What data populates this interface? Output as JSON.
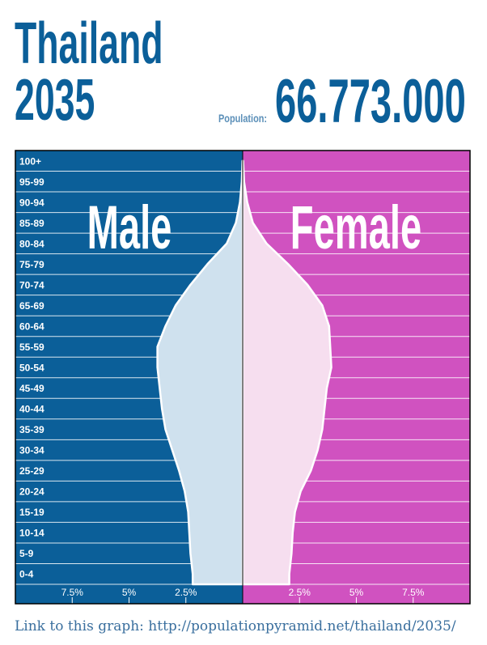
{
  "country": "Thailand",
  "year": "2035",
  "population_label": "Population:",
  "population_value": "66.773.000",
  "footer_link": "Link to this graph: http://populationpyramid.net/thailand/2035/",
  "colors": {
    "title": "#0b5f99",
    "male_bg": "#0b5f99",
    "female_bg": "#d052c0",
    "male_fill": "#cfe1ee",
    "female_fill": "#f6deef",
    "outline": "#ffffff"
  },
  "chart_data": {
    "type": "bar",
    "orientation": "horizontal-pyramid",
    "unit": "%",
    "xlim": [
      -10,
      10
    ],
    "categories": [
      "0-4",
      "5-9",
      "10-14",
      "15-19",
      "20-24",
      "25-29",
      "30-34",
      "35-39",
      "40-44",
      "45-49",
      "50-54",
      "55-59",
      "60-64",
      "65-69",
      "70-74",
      "75-79",
      "80-84",
      "85-89",
      "90-94",
      "95-99",
      "100+"
    ],
    "series": [
      {
        "name": "Male",
        "values": [
          2.2,
          2.3,
          2.35,
          2.4,
          2.55,
          2.8,
          3.1,
          3.4,
          3.55,
          3.65,
          3.75,
          3.75,
          3.4,
          2.95,
          2.3,
          1.55,
          0.7,
          0.3,
          0.12,
          0.04,
          0.01
        ]
      },
      {
        "name": "Female",
        "values": [
          2.05,
          2.15,
          2.2,
          2.3,
          2.55,
          3.0,
          3.3,
          3.5,
          3.6,
          3.7,
          3.9,
          3.85,
          3.8,
          3.5,
          2.85,
          2.0,
          1.05,
          0.45,
          0.2,
          0.06,
          0.02
        ]
      }
    ],
    "x_ticks": [
      {
        "value": -7.5,
        "label": "7.5%"
      },
      {
        "value": -5,
        "label": "5%"
      },
      {
        "value": -2.5,
        "label": "2.5%"
      },
      {
        "value": 2.5,
        "label": "2.5%"
      },
      {
        "value": 5,
        "label": "5%"
      },
      {
        "value": 7.5,
        "label": "7.5%"
      }
    ],
    "grid": true
  }
}
